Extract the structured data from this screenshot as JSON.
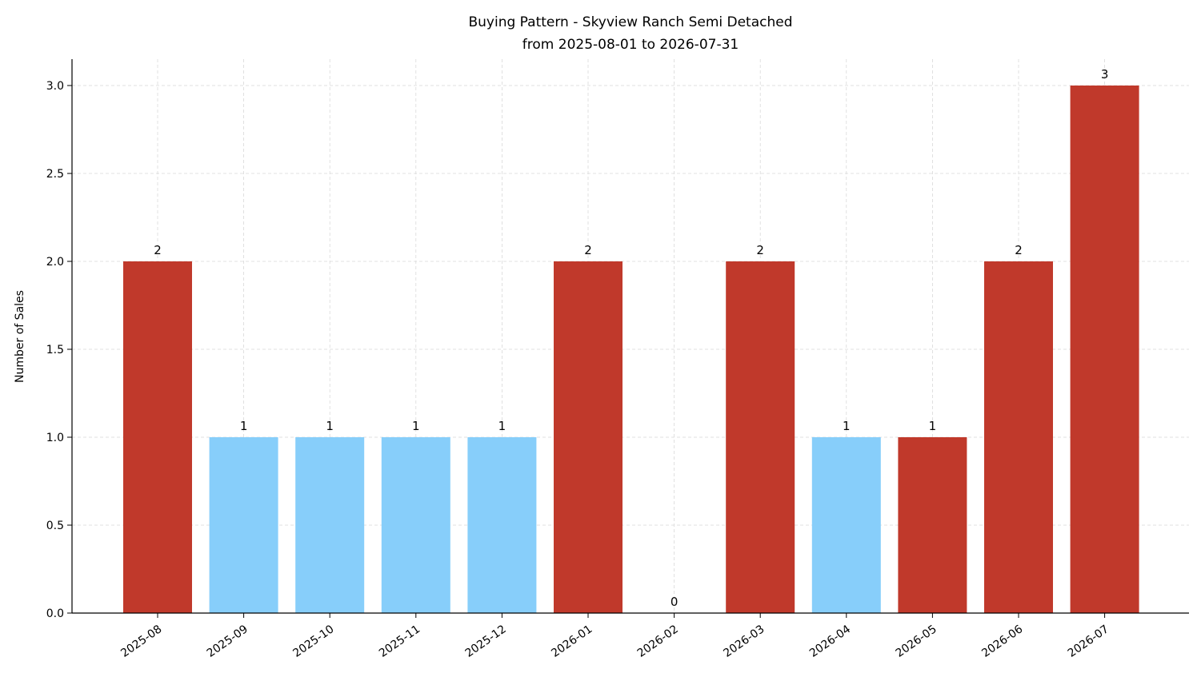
{
  "chart_data": {
    "type": "bar",
    "title": "Buying Pattern - Skyview Ranch Semi Detached",
    "subtitle": "from 2025-08-01 to 2026-07-31",
    "xlabel": "",
    "ylabel": "Number of Sales",
    "categories": [
      "2025-08",
      "2025-09",
      "2025-10",
      "2025-11",
      "2025-12",
      "2026-01",
      "2026-02",
      "2026-03",
      "2026-04",
      "2026-05",
      "2026-06",
      "2026-07"
    ],
    "values": [
      2,
      1,
      1,
      1,
      1,
      2,
      0,
      2,
      1,
      1,
      2,
      3
    ],
    "value_labels": [
      "2",
      "1",
      "1",
      "1",
      "1",
      "2",
      "0",
      "2",
      "1",
      "1",
      "2",
      "3"
    ],
    "bar_colors": [
      "#c0392b",
      "#87cefa",
      "#87cefa",
      "#87cefa",
      "#87cefa",
      "#c0392b",
      "#c0392b",
      "#c0392b",
      "#87cefa",
      "#c0392b",
      "#c0392b",
      "#c0392b"
    ],
    "yticks": [
      0.0,
      0.5,
      1.0,
      1.5,
      2.0,
      2.5,
      3.0
    ],
    "ytick_labels": [
      "0.0",
      "0.5",
      "1.0",
      "1.5",
      "2.0",
      "2.5",
      "3.0"
    ],
    "ylim": [
      0,
      3.15
    ],
    "grid": true,
    "colors": {
      "high": "#c0392b",
      "low": "#87cefa",
      "grid": "#d9d9d9",
      "axis": "#000000"
    }
  }
}
